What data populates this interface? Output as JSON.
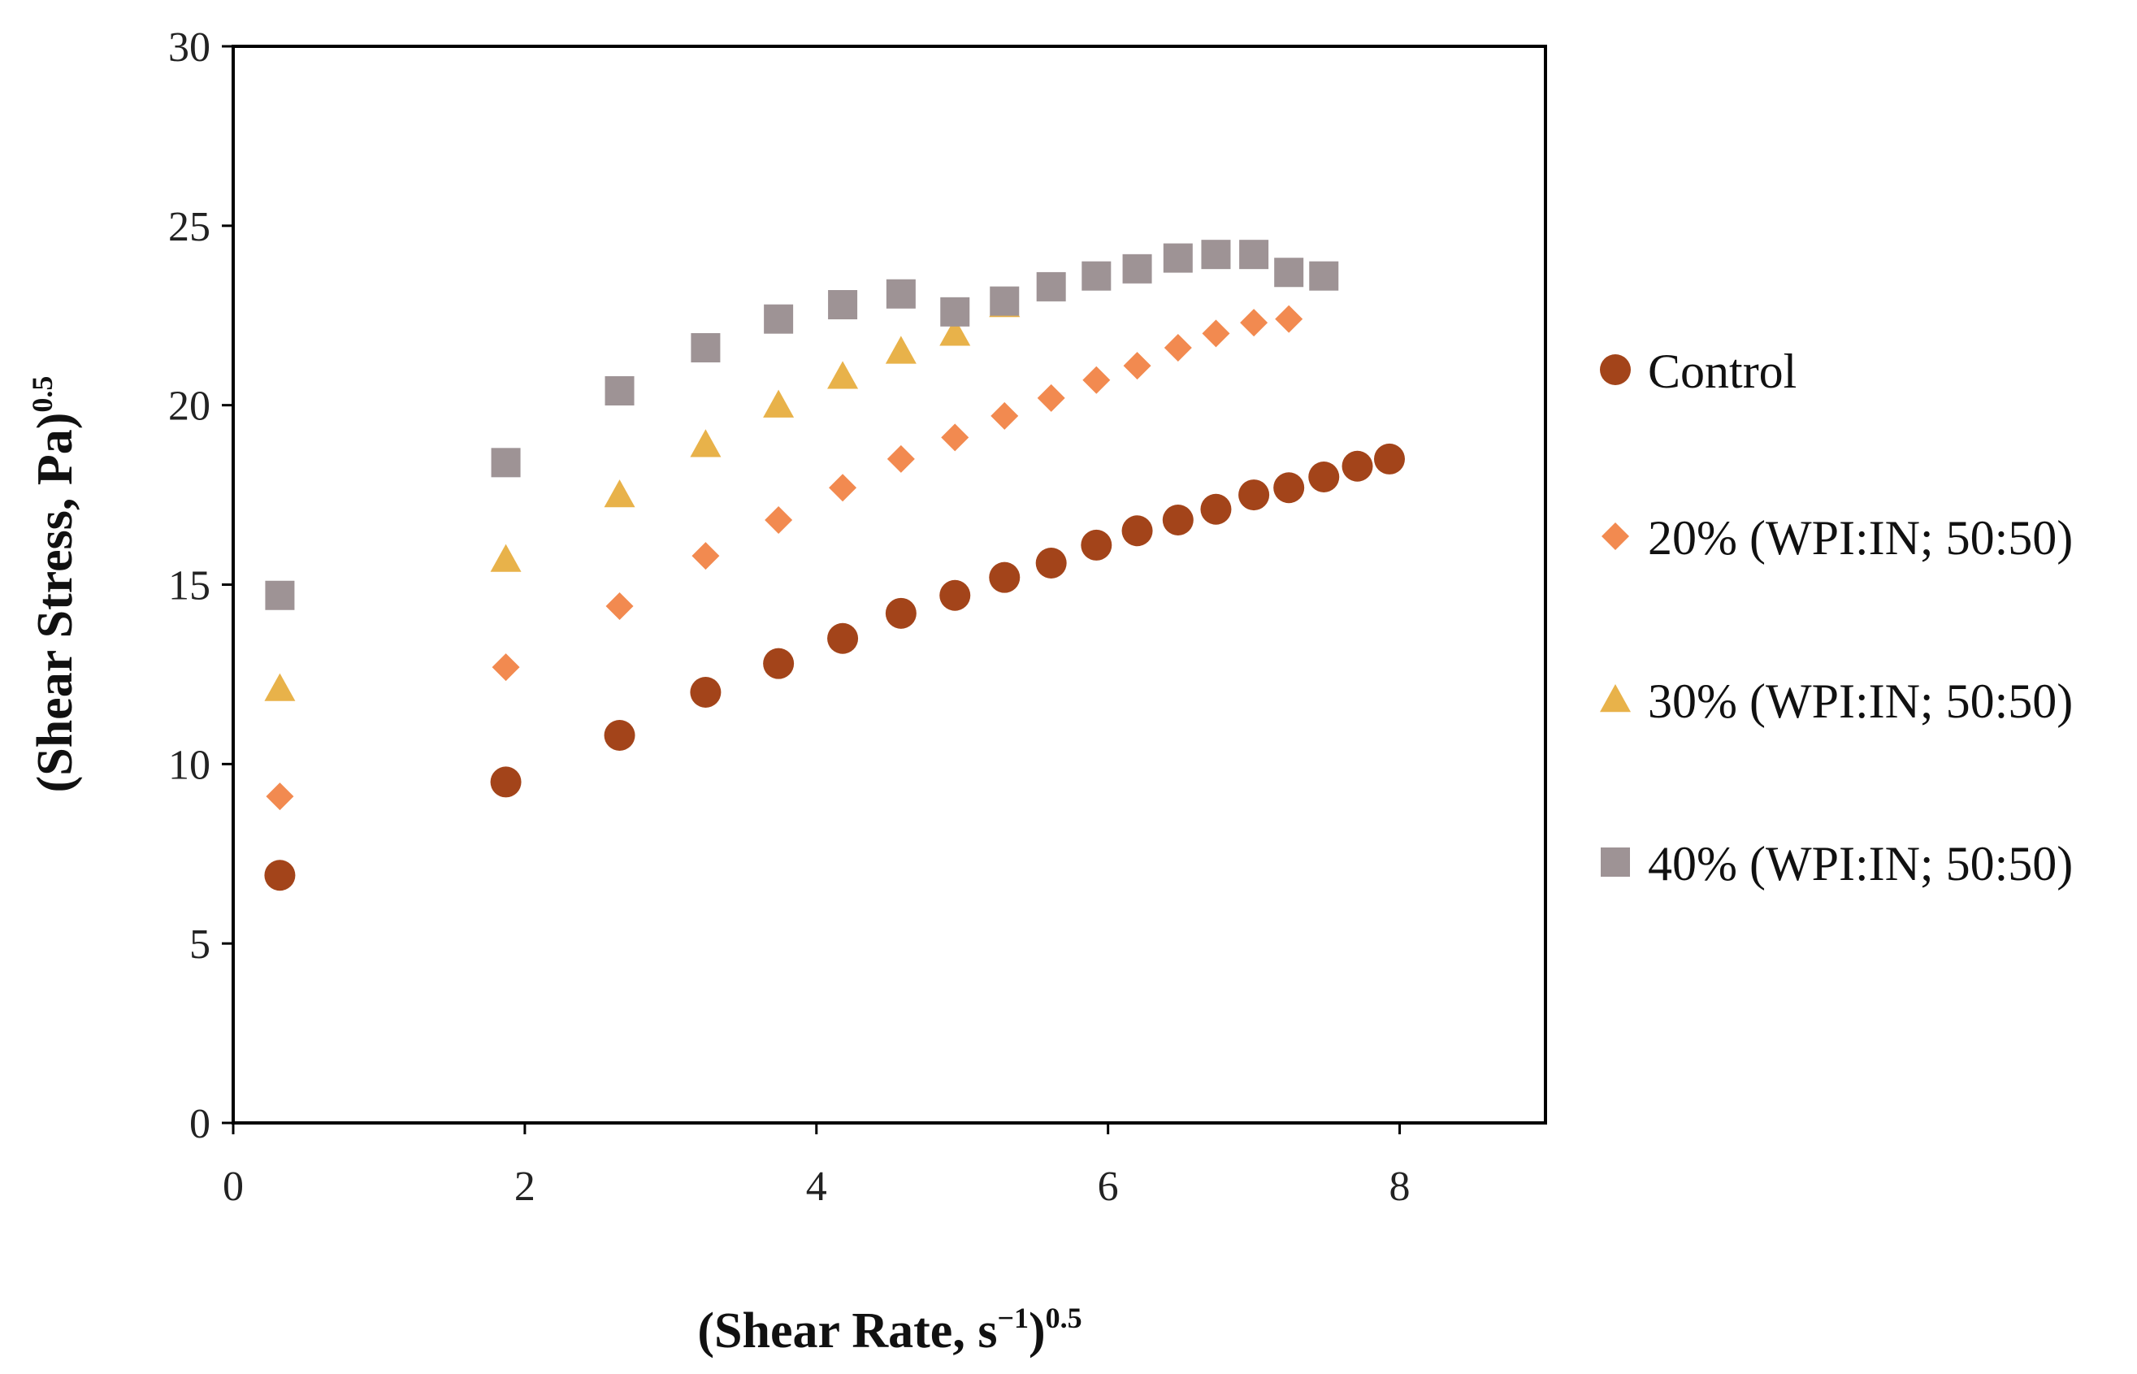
{
  "chart_data": {
    "type": "scatter",
    "title": "",
    "xlabel": {
      "main": "(Shear Rate, s",
      "exp_inner": "−1",
      "close": ")",
      "exp_outer": "0.5"
    },
    "ylabel": {
      "main": "(Shear Stress, Pa)",
      "exp_outer": "0.5"
    },
    "xlim": [
      0,
      9
    ],
    "ylim": [
      0,
      30
    ],
    "xticks": [
      0,
      2,
      4,
      6,
      8
    ],
    "xtick_labels": [
      "0",
      "2",
      "4",
      "6",
      "8"
    ],
    "yticks": [
      0,
      5,
      10,
      15,
      20,
      25,
      30
    ],
    "ytick_labels": [
      "0",
      "5",
      "10",
      "15",
      "20",
      "25",
      "30"
    ],
    "grid": false,
    "legend_position": "right",
    "series": [
      {
        "name": "Control",
        "marker": "circle",
        "color": "#A3441A",
        "x": [
          0.32,
          1.87,
          2.65,
          3.24,
          3.74,
          4.18,
          4.58,
          4.95,
          5.29,
          5.61,
          5.92,
          6.2,
          6.48,
          6.74,
          7.0,
          7.24,
          7.48,
          7.71,
          7.93
        ],
        "y": [
          6.9,
          9.5,
          10.8,
          12.0,
          12.8,
          13.5,
          14.2,
          14.7,
          15.2,
          15.6,
          16.1,
          16.5,
          16.8,
          17.1,
          17.5,
          17.7,
          18.0,
          18.3,
          18.5
        ]
      },
      {
        "name": "20% (WPI:IN; 50:50)",
        "marker": "diamond",
        "color": "#F28A50",
        "x": [
          0.32,
          1.87,
          2.65,
          3.24,
          3.74,
          4.18,
          4.58,
          4.95,
          5.29,
          5.61,
          5.92,
          6.2,
          6.48,
          6.74,
          7.0,
          7.24
        ],
        "y": [
          9.1,
          12.7,
          14.4,
          15.8,
          16.8,
          17.7,
          18.5,
          19.1,
          19.7,
          20.2,
          20.7,
          21.1,
          21.6,
          22.0,
          22.3,
          22.4
        ]
      },
      {
        "name": "30% (WPI:IN; 50:50)",
        "marker": "triangle",
        "color": "#E8B24A",
        "x": [
          0.32,
          1.87,
          2.65,
          3.24,
          3.74,
          4.18,
          4.58,
          4.95,
          5.29
        ],
        "y": [
          12.1,
          15.7,
          17.5,
          18.9,
          20.0,
          20.8,
          21.5,
          22.0,
          22.8
        ]
      },
      {
        "name": "40% (WPI:IN; 50:50)",
        "marker": "square",
        "color": "#9E9395",
        "x": [
          0.32,
          1.87,
          2.65,
          3.24,
          3.74,
          4.18,
          4.58,
          4.95,
          5.29,
          5.61,
          5.92,
          6.2,
          6.48,
          6.74,
          7.0,
          7.24,
          7.48
        ],
        "y": [
          14.7,
          18.4,
          20.4,
          21.6,
          22.4,
          22.8,
          23.1,
          22.6,
          22.9,
          23.3,
          23.6,
          23.8,
          24.1,
          24.2,
          24.2,
          23.7,
          23.6
        ]
      }
    ]
  }
}
